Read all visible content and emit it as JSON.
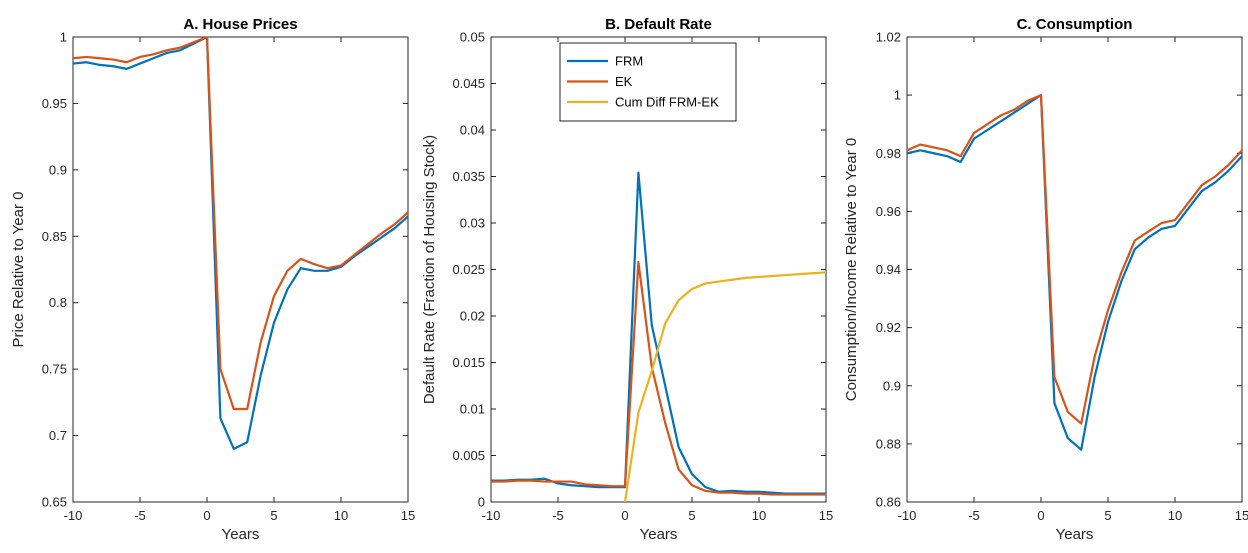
{
  "colors": {
    "FRM": "#0072BD",
    "EK": "#D95319",
    "Cum Diff FRM-EK": "#EDB120",
    "axis": "#262626"
  },
  "chart_data": [
    {
      "type": "line",
      "title": "A. House Prices",
      "xlabel": "Years",
      "ylabel": "Price Relative to Year 0",
      "xlim": [
        -10,
        15
      ],
      "ylim": [
        0.65,
        1
      ],
      "xticks": [
        -10,
        -5,
        0,
        5,
        10,
        15
      ],
      "xtick_labels": [
        "-10",
        "-5",
        "0",
        "5",
        "10",
        "15"
      ],
      "yticks": [
        0.65,
        0.7,
        0.75,
        0.8,
        0.85,
        0.9,
        0.95,
        1
      ],
      "ytick_labels": [
        "0.65",
        "0.7",
        "0.75",
        "0.8",
        "0.85",
        "0.9",
        "0.95",
        "1"
      ],
      "grid": false,
      "x": [
        -10,
        -9,
        -8,
        -7,
        -6,
        -5,
        -4,
        -3,
        -2,
        -1,
        0,
        1,
        2,
        3,
        4,
        5,
        6,
        7,
        8,
        9,
        10,
        11,
        12,
        13,
        14,
        15
      ],
      "series": [
        {
          "name": "FRM",
          "values": [
            0.98,
            0.981,
            0.979,
            0.978,
            0.976,
            0.98,
            0.984,
            0.988,
            0.99,
            0.995,
            1.0,
            0.713,
            0.69,
            0.695,
            0.745,
            0.785,
            0.81,
            0.826,
            0.824,
            0.824,
            0.827,
            0.835,
            0.842,
            0.849,
            0.856,
            0.865
          ]
        },
        {
          "name": "EK",
          "values": [
            0.984,
            0.985,
            0.984,
            0.983,
            0.981,
            0.985,
            0.987,
            0.99,
            0.992,
            0.996,
            1.0,
            0.75,
            0.72,
            0.72,
            0.77,
            0.805,
            0.824,
            0.833,
            0.829,
            0.826,
            0.828,
            0.836,
            0.844,
            0.852,
            0.859,
            0.868
          ]
        }
      ]
    },
    {
      "type": "line",
      "title": "B. Default Rate",
      "xlabel": "Years",
      "ylabel": "Default Rate (Fraction of Housing Stock)",
      "xlim": [
        -10,
        15
      ],
      "ylim": [
        0,
        0.05
      ],
      "xticks": [
        -10,
        -5,
        0,
        5,
        10,
        15
      ],
      "xtick_labels": [
        "-10",
        "-5",
        "0",
        "5",
        "10",
        "15"
      ],
      "yticks": [
        0,
        0.005,
        0.01,
        0.015,
        0.02,
        0.025,
        0.03,
        0.035,
        0.04,
        0.045,
        0.05
      ],
      "ytick_labels": [
        "0",
        "0.005",
        "0.01",
        "0.015",
        "0.02",
        "0.025",
        "0.03",
        "0.035",
        "0.04",
        "0.045",
        "0.05"
      ],
      "grid": false,
      "legend": {
        "location": "top-center",
        "entries": [
          "FRM",
          "EK",
          "Cum Diff FRM-EK"
        ]
      },
      "x": [
        -10,
        -9,
        -8,
        -7,
        -6,
        -5,
        -4,
        -3,
        -2,
        -1,
        0,
        1,
        2,
        3,
        4,
        5,
        6,
        7,
        8,
        9,
        10,
        11,
        12,
        13,
        14,
        15
      ],
      "series": [
        {
          "name": "FRM",
          "values": [
            0.0023,
            0.0023,
            0.0024,
            0.0024,
            0.0025,
            0.002,
            0.0018,
            0.0017,
            0.0016,
            0.0016,
            0.0016,
            0.0354,
            0.019,
            0.0125,
            0.0059,
            0.003,
            0.0016,
            0.0011,
            0.0012,
            0.0011,
            0.0011,
            0.001,
            0.0009,
            0.0009,
            0.0009,
            0.0009
          ]
        },
        {
          "name": "EK",
          "values": [
            0.0022,
            0.0022,
            0.0023,
            0.0023,
            0.0022,
            0.0022,
            0.0022,
            0.0019,
            0.0018,
            0.0017,
            0.0017,
            0.0258,
            0.0145,
            0.0085,
            0.0035,
            0.0018,
            0.0012,
            0.001,
            0.001,
            0.0009,
            0.0009,
            0.0008,
            0.0008,
            0.0008,
            0.0008,
            0.0008
          ]
        },
        {
          "name": "Cum Diff FRM-EK",
          "values": [
            null,
            null,
            null,
            null,
            null,
            null,
            null,
            null,
            null,
            null,
            0.0,
            0.0096,
            0.0141,
            0.0192,
            0.0217,
            0.0229,
            0.0235,
            0.0237,
            0.0239,
            0.0241,
            0.0242,
            0.0243,
            0.0244,
            0.0245,
            0.0246,
            0.0247
          ]
        }
      ]
    },
    {
      "type": "line",
      "title": "C. Consumption",
      "xlabel": "Years",
      "ylabel": "Consumption/Income Relative to Year 0",
      "xlim": [
        -10,
        15
      ],
      "ylim": [
        0.86,
        1.02
      ],
      "xticks": [
        -10,
        -5,
        0,
        5,
        10,
        15
      ],
      "xtick_labels": [
        "-10",
        "-5",
        "0",
        "5",
        "10",
        "15"
      ],
      "yticks": [
        0.86,
        0.88,
        0.9,
        0.92,
        0.94,
        0.96,
        0.98,
        1,
        1.02
      ],
      "ytick_labels": [
        "0.86",
        "0.88",
        "0.9",
        "0.92",
        "0.94",
        "0.96",
        "0.98",
        "1",
        "1.02"
      ],
      "grid": false,
      "x": [
        -10,
        -9,
        -8,
        -7,
        -6,
        -5,
        -4,
        -3,
        -2,
        -1,
        0,
        1,
        2,
        3,
        4,
        5,
        6,
        7,
        8,
        9,
        10,
        11,
        12,
        13,
        14,
        15
      ],
      "series": [
        {
          "name": "FRM",
          "values": [
            0.98,
            0.981,
            0.98,
            0.979,
            0.977,
            0.985,
            0.988,
            0.991,
            0.994,
            0.997,
            1.0,
            0.894,
            0.882,
            0.878,
            0.903,
            0.922,
            0.936,
            0.947,
            0.951,
            0.954,
            0.955,
            0.961,
            0.967,
            0.97,
            0.974,
            0.979
          ]
        },
        {
          "name": "EK",
          "values": [
            0.981,
            0.983,
            0.982,
            0.981,
            0.979,
            0.987,
            0.99,
            0.993,
            0.995,
            0.998,
            1.0,
            0.903,
            0.891,
            0.887,
            0.91,
            0.926,
            0.939,
            0.95,
            0.953,
            0.956,
            0.957,
            0.963,
            0.969,
            0.972,
            0.976,
            0.981
          ]
        }
      ]
    }
  ]
}
